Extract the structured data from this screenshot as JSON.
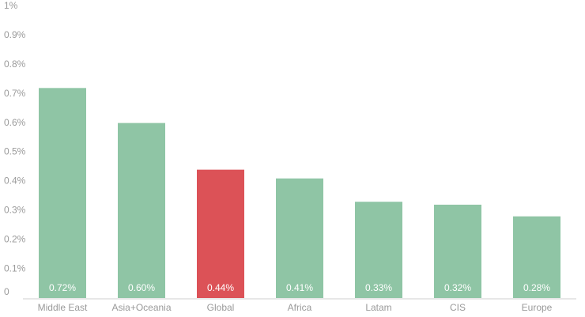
{
  "chart_data": {
    "type": "bar",
    "categories": [
      "Middle East",
      "Asia+Oceania",
      "Global",
      "Africa",
      "Latam",
      "CIS",
      "Europe"
    ],
    "values": [
      0.72,
      0.6,
      0.44,
      0.41,
      0.33,
      0.32,
      0.28
    ],
    "value_labels": [
      "0.72%",
      "0.60%",
      "0.44%",
      "0.41%",
      "0.33%",
      "0.32%",
      "0.28%"
    ],
    "colors": [
      "#8fc5a5",
      "#8fc5a5",
      "#dc5257",
      "#8fc5a5",
      "#8fc5a5",
      "#8fc5a5",
      "#8fc5a5"
    ],
    "ylim": [
      0,
      1
    ],
    "yticks": [
      0,
      {
        "value": 0.1,
        "label": "0.1%"
      },
      {
        "value": 0.2,
        "label": "0.2%"
      },
      {
        "value": 0.3,
        "label": "0.3%"
      },
      {
        "value": 0.4,
        "label": "0.4%"
      },
      {
        "value": 0.5,
        "label": "0.5%"
      },
      {
        "value": 0.6,
        "label": "0.6%"
      },
      {
        "value": 0.7,
        "label": "0.7%"
      },
      {
        "value": 0.8,
        "label": "0.8%"
      },
      {
        "value": 0.9,
        "label": "0.9%"
      },
      {
        "value": 1,
        "label": "1%"
      }
    ],
    "grid": false
  }
}
